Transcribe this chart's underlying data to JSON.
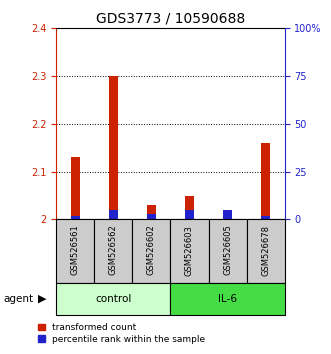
{
  "title": "GDS3773 / 10590688",
  "samples": [
    "GSM526561",
    "GSM526562",
    "GSM526602",
    "GSM526603",
    "GSM526605",
    "GSM526678"
  ],
  "red_values": [
    2.13,
    2.3,
    2.03,
    2.05,
    2.0,
    2.16
  ],
  "blue_pct": [
    2.0,
    5.0,
    3.0,
    5.0,
    5.0,
    2.0
  ],
  "ylim_left": [
    2.0,
    2.4
  ],
  "ylim_right": [
    0,
    100
  ],
  "yticks_left": [
    2.0,
    2.1,
    2.2,
    2.3,
    2.4
  ],
  "ytick_labels_left": [
    "2",
    "2.1",
    "2.2",
    "2.3",
    "2.4"
  ],
  "yticks_right": [
    0,
    25,
    50,
    75,
    100
  ],
  "ytick_labels_right": [
    "0",
    "25",
    "50",
    "75",
    "100%"
  ],
  "control_label": "control",
  "il6_label": "IL-6",
  "agent_label": "agent",
  "legend_red": "transformed count",
  "legend_blue": "percentile rank within the sample",
  "red_color": "#cc2200",
  "blue_color": "#2222cc",
  "control_bg": "#ccffcc",
  "il6_bg": "#44dd44",
  "sample_bg": "#cccccc",
  "title_fontsize": 10,
  "tick_fontsize": 7,
  "legend_fontsize": 6.5
}
